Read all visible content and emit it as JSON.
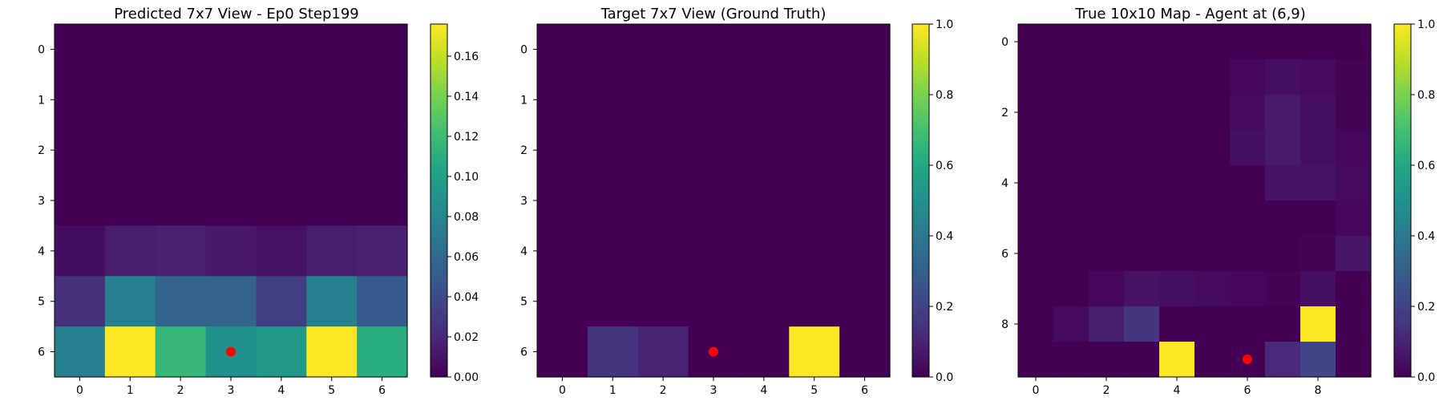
{
  "chart_data": [
    {
      "type": "heatmap",
      "title": "Predicted 7x7 View - Ep0 Step199",
      "colormap": "viridis",
      "vmin": 0.0,
      "vmax": 0.176,
      "x_ticks": [
        "0",
        "1",
        "2",
        "3",
        "4",
        "5",
        "6"
      ],
      "y_ticks": [
        "0",
        "1",
        "2",
        "3",
        "4",
        "5",
        "6"
      ],
      "colorbar_ticks": [
        "0.00",
        "0.02",
        "0.04",
        "0.06",
        "0.08",
        "0.10",
        "0.12",
        "0.14",
        "0.16"
      ],
      "colorbar_tick_values": [
        0.0,
        0.02,
        0.04,
        0.06,
        0.08,
        0.1,
        0.12,
        0.14,
        0.16
      ],
      "marker": {
        "x": 3,
        "y": 6,
        "color": "#ff0000"
      },
      "values": [
        [
          0.0,
          0.0,
          0.0,
          0.0,
          0.0,
          0.0,
          0.0
        ],
        [
          0.0,
          0.0,
          0.0,
          0.0,
          0.0,
          0.0,
          0.0
        ],
        [
          0.0,
          0.0,
          0.0,
          0.0,
          0.0,
          0.0,
          0.0
        ],
        [
          0.0,
          0.0,
          0.0,
          0.0,
          0.0,
          0.0,
          0.0
        ],
        [
          0.006,
          0.014,
          0.016,
          0.012,
          0.008,
          0.014,
          0.016
        ],
        [
          0.024,
          0.076,
          0.056,
          0.056,
          0.032,
          0.076,
          0.05
        ],
        [
          0.076,
          0.176,
          0.116,
          0.088,
          0.094,
          0.176,
          0.11
        ]
      ]
    },
    {
      "type": "heatmap",
      "title": "Target 7x7 View (Ground Truth)",
      "colormap": "viridis",
      "vmin": 0.0,
      "vmax": 1.0,
      "x_ticks": [
        "0",
        "1",
        "2",
        "3",
        "4",
        "5",
        "6"
      ],
      "y_ticks": [
        "0",
        "1",
        "2",
        "3",
        "4",
        "5",
        "6"
      ],
      "colorbar_ticks": [
        "0.0",
        "0.2",
        "0.4",
        "0.6",
        "0.8",
        "1.0"
      ],
      "colorbar_tick_values": [
        0.0,
        0.2,
        0.4,
        0.6,
        0.8,
        1.0
      ],
      "marker": {
        "x": 3,
        "y": 6,
        "color": "#ff0000"
      },
      "values": [
        [
          0,
          0,
          0,
          0,
          0,
          0,
          0
        ],
        [
          0,
          0,
          0,
          0,
          0,
          0,
          0
        ],
        [
          0,
          0,
          0,
          0,
          0,
          0,
          0
        ],
        [
          0,
          0,
          0,
          0,
          0,
          0,
          0
        ],
        [
          0,
          0,
          0,
          0,
          0,
          0,
          0
        ],
        [
          0,
          0,
          0,
          0,
          0,
          0,
          0
        ],
        [
          0,
          0.15,
          0.1,
          0,
          0,
          1.0,
          0
        ]
      ]
    },
    {
      "type": "heatmap",
      "title": "True 10x10 Map - Agent at (6,9)",
      "colormap": "viridis",
      "vmin": 0.0,
      "vmax": 1.0,
      "x_ticks": [
        "0",
        "2",
        "4",
        "6",
        "8"
      ],
      "x_tick_values": [
        0,
        2,
        4,
        6,
        8
      ],
      "y_ticks": [
        "0",
        "2",
        "4",
        "6",
        "8"
      ],
      "y_tick_values": [
        0,
        2,
        4,
        6,
        8
      ],
      "colorbar_ticks": [
        "0.0",
        "0.2",
        "0.4",
        "0.6",
        "0.8",
        "1.0"
      ],
      "colorbar_tick_values": [
        0.0,
        0.2,
        0.4,
        0.6,
        0.8,
        1.0
      ],
      "marker": {
        "x": 6,
        "y": 9,
        "color": "#ff0000"
      },
      "values": [
        [
          0,
          0,
          0,
          0,
          0,
          0,
          0,
          0,
          0,
          0
        ],
        [
          0,
          0,
          0,
          0,
          0,
          0,
          0.02,
          0.04,
          0.03,
          0.01
        ],
        [
          0,
          0,
          0,
          0,
          0,
          0,
          0.03,
          0.07,
          0.04,
          0.01
        ],
        [
          0,
          0,
          0,
          0,
          0,
          0,
          0.04,
          0.07,
          0.04,
          0.02
        ],
        [
          0,
          0,
          0,
          0,
          0,
          0,
          0,
          0.05,
          0.05,
          0.03
        ],
        [
          0,
          0,
          0,
          0,
          0,
          0,
          0,
          0,
          0,
          0.02
        ],
        [
          0,
          0,
          0,
          0,
          0,
          0,
          0,
          0,
          0.01,
          0.06
        ],
        [
          0,
          0,
          0.02,
          0.05,
          0.04,
          0.03,
          0.02,
          0.01,
          0.04,
          0
        ],
        [
          0,
          0.03,
          0.08,
          0.15,
          0,
          0,
          0,
          0,
          1.0,
          0
        ],
        [
          0,
          0,
          0,
          0,
          1.0,
          0,
          0,
          0.12,
          0.2,
          0
        ]
      ]
    }
  ]
}
